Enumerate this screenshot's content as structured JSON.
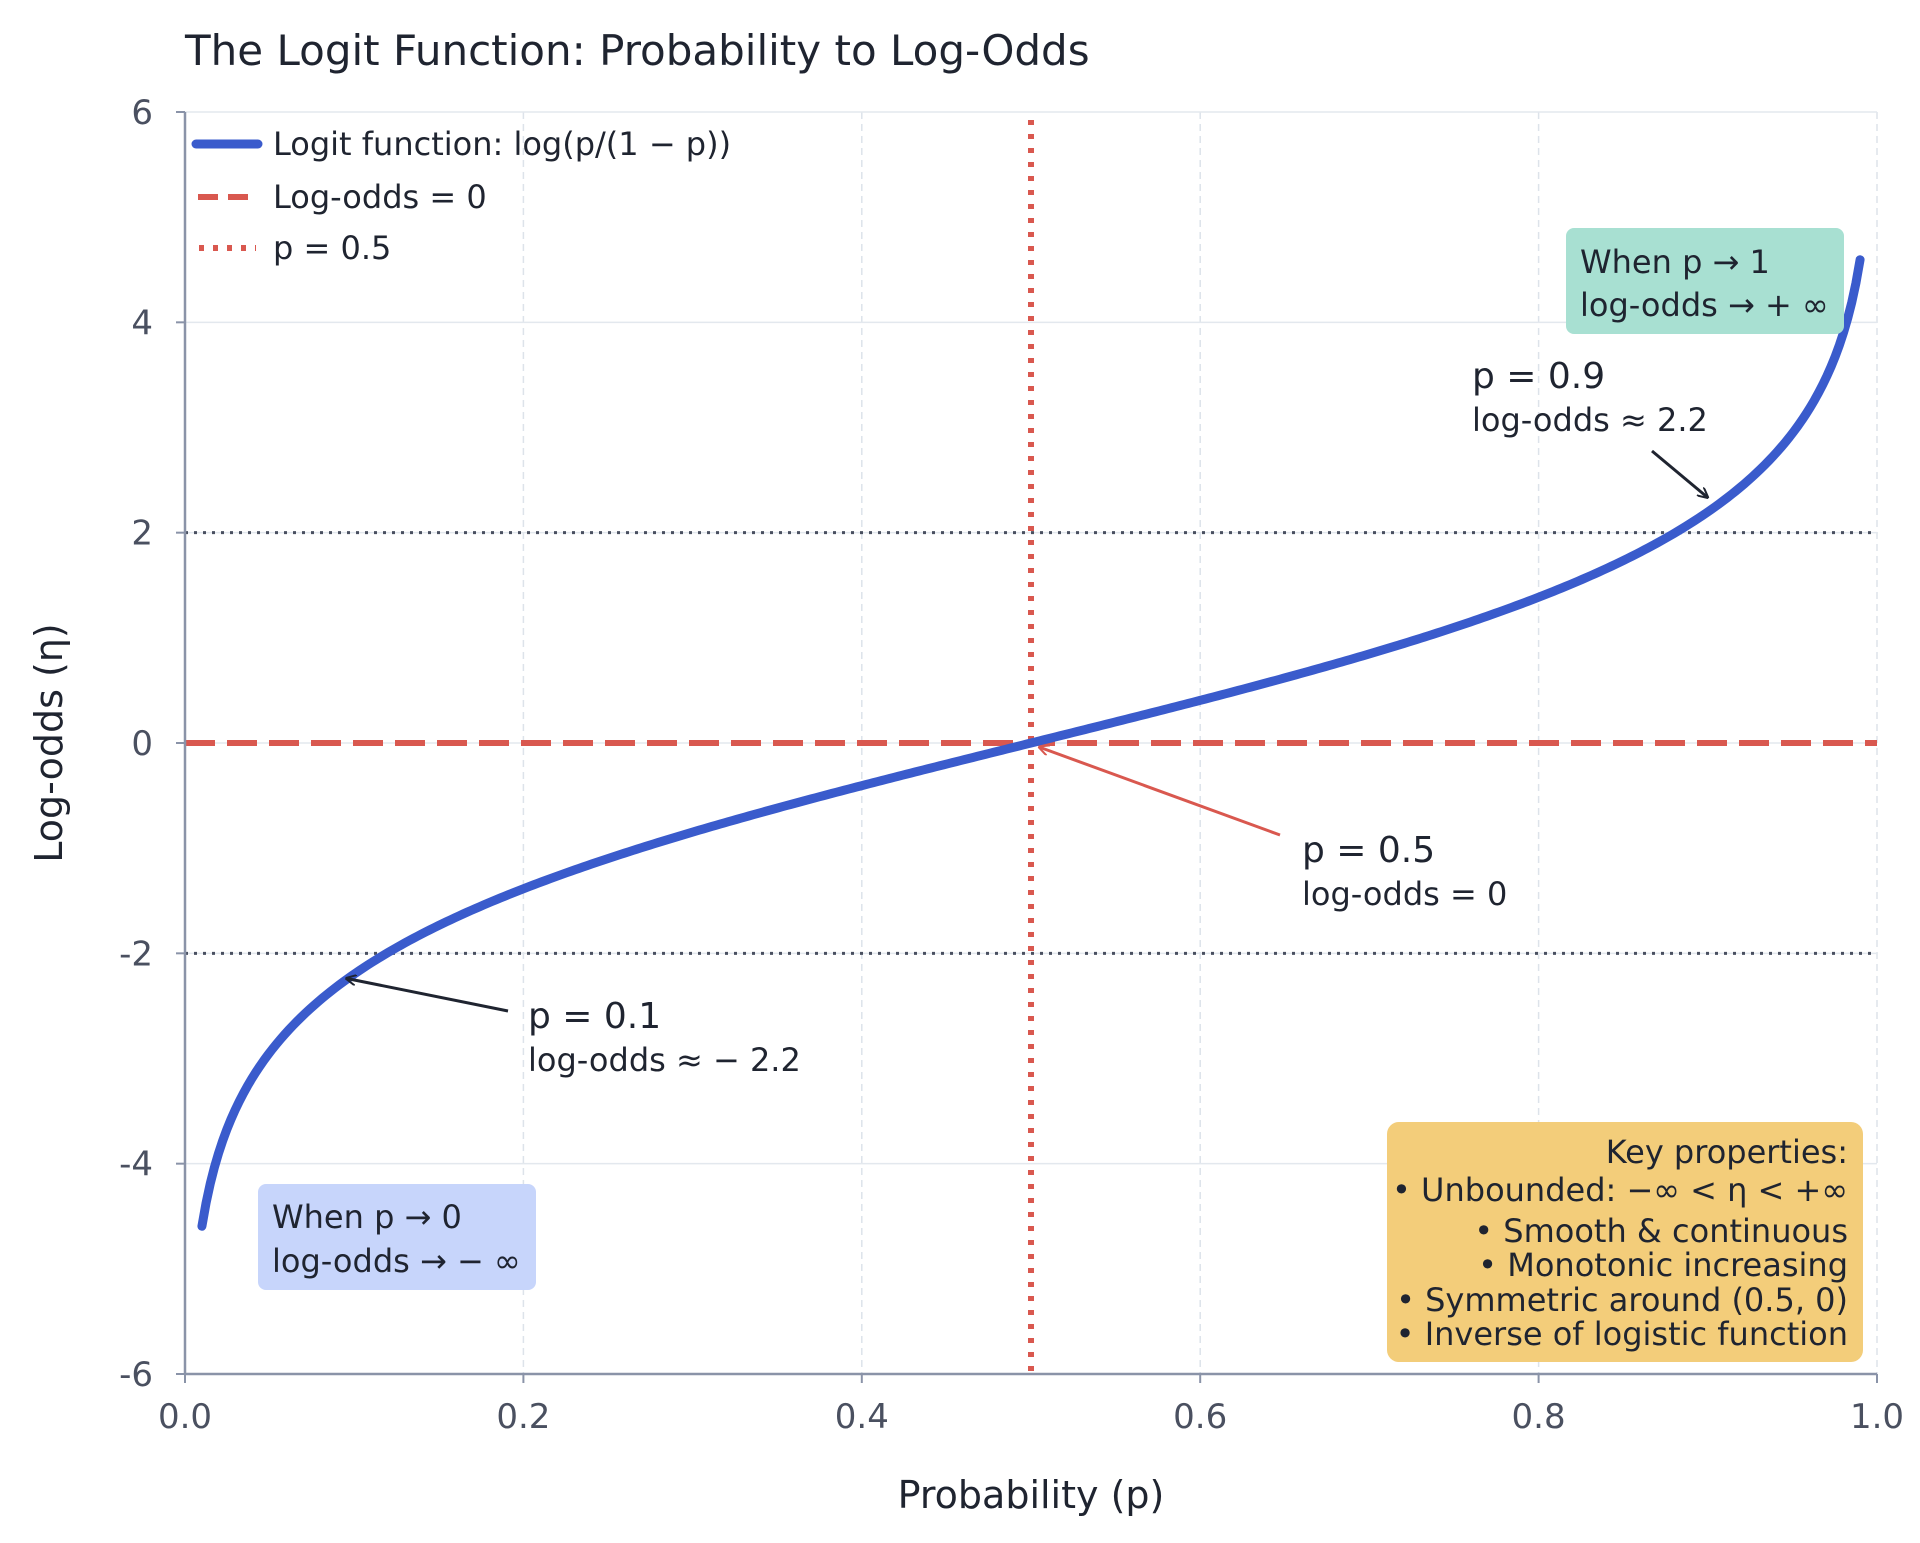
{
  "chart_data": {
    "type": "line",
    "title": "The Logit Function: Probability to Log-Odds",
    "xlabel": "Probability (p)",
    "ylabel": "Log-odds (η)",
    "xlim": [
      0.0,
      1.0
    ],
    "ylim": [
      -6,
      6
    ],
    "xticks": [
      "0.0",
      "0.2",
      "0.4",
      "0.6",
      "0.8",
      "1.0"
    ],
    "yticks": [
      "-6",
      "-4",
      "-2",
      "0",
      "2",
      "4",
      "6"
    ],
    "grid": true,
    "legend_placement": "top-left",
    "series": [
      {
        "name": "Logit function: log(p/(1 − p))",
        "color": "#3a5bcc",
        "x": [
          0.01,
          0.02,
          0.05,
          0.1,
          0.15,
          0.2,
          0.25,
          0.3,
          0.35,
          0.4,
          0.45,
          0.5,
          0.55,
          0.6,
          0.65,
          0.7,
          0.75,
          0.8,
          0.85,
          0.9,
          0.95,
          0.98,
          0.99
        ],
        "y": [
          -4.6,
          -3.89,
          -2.94,
          -2.2,
          -1.73,
          -1.39,
          -1.1,
          -0.85,
          -0.62,
          -0.41,
          -0.2,
          0.0,
          0.2,
          0.41,
          0.62,
          0.85,
          1.1,
          1.39,
          1.73,
          2.2,
          2.94,
          3.89,
          4.6
        ]
      }
    ],
    "reference_lines": [
      {
        "name": "Log-odds = 0",
        "orientation": "horizontal",
        "value": 0,
        "style": "dashed",
        "color": "#d9584f"
      },
      {
        "name": "p = 0.5",
        "orientation": "vertical",
        "value": 0.5,
        "style": "dotted",
        "color": "#d9584f"
      },
      {
        "orientation": "horizontal",
        "value": 2,
        "style": "dotted",
        "color": "#4a5060"
      },
      {
        "orientation": "horizontal",
        "value": -2,
        "style": "dotted",
        "color": "#4a5060"
      }
    ],
    "annotations": [
      {
        "point": [
          0.5,
          0
        ],
        "line1": "p = 0.5",
        "line2": "log-odds = 0",
        "arrow_color": "#d9584f"
      },
      {
        "point": [
          0.9,
          2.2
        ],
        "line1": "p = 0.9",
        "line2": "log-odds  ≈ 2.2",
        "arrow_color": "#1f2430"
      },
      {
        "point": [
          0.1,
          -2.2
        ],
        "line1": "p = 0.1",
        "line2": "log-odds  ≈  − 2.2",
        "arrow_color": "#1f2430"
      }
    ],
    "boxes": {
      "right": {
        "line1": "When p → 1",
        "line2": "log-odds  → + ∞",
        "color": "#a8e0d2"
      },
      "left": {
        "line1": "When p → 0",
        "line2": "log-odds  → − ∞",
        "color": "#c7d5fb"
      },
      "properties": {
        "color": "#f3cd7a",
        "lines": [
          "Key properties:",
          "• Unbounded: −∞ < η < +∞",
          "• Smooth & continuous",
          "• Monotonic increasing",
          "• Symmetric around (0.5, 0)",
          "• Inverse of logistic function"
        ]
      }
    },
    "legend": [
      {
        "label": "Logit function: log(p/(1 − p))"
      },
      {
        "label": "Log-odds = 0"
      },
      {
        "label": "p = 0.5"
      }
    ]
  }
}
